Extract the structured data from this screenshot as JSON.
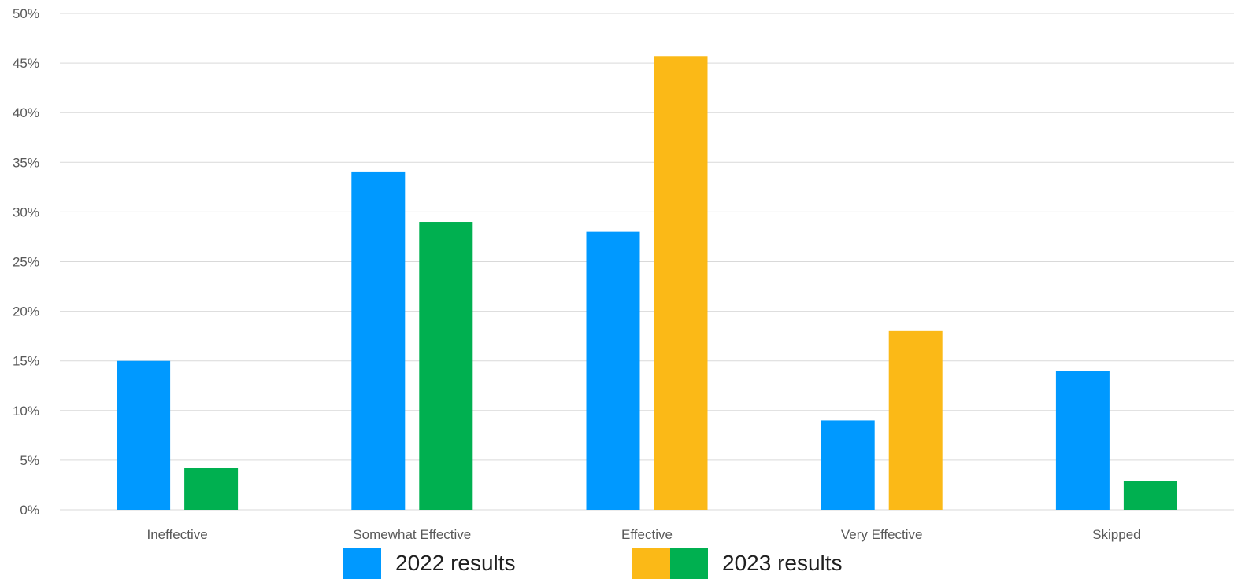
{
  "chart_data": {
    "type": "bar",
    "categories": [
      "Ineffective",
      "Somewhat Effective",
      "Effective",
      "Very Effective",
      "Skipped"
    ],
    "series": [
      {
        "name": "2022 results",
        "values": [
          15,
          34,
          28,
          9,
          14
        ],
        "colors": [
          "#0099FF",
          "#0099FF",
          "#0099FF",
          "#0099FF",
          "#0099FF"
        ]
      },
      {
        "name": "2023 results",
        "values": [
          4.2,
          29,
          45.7,
          18,
          2.9
        ],
        "colors": [
          "#00B050",
          "#00B050",
          "#FBB917",
          "#FBB917",
          "#00B050"
        ]
      }
    ],
    "yticks": [
      "0%",
      "5%",
      "10%",
      "15%",
      "20%",
      "25%",
      "30%",
      "35%",
      "40%",
      "45%",
      "50%"
    ],
    "ylim": [
      0,
      50
    ],
    "grid": true,
    "legend": {
      "position": "bottom",
      "items": [
        {
          "label": "2022 results",
          "colors": [
            "#0099FF"
          ]
        },
        {
          "label": "2023 results",
          "colors": [
            "#FBB917",
            "#00B050"
          ]
        }
      ]
    }
  }
}
